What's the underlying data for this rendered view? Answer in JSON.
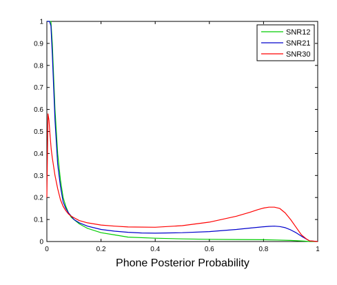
{
  "chart_data": {
    "type": "line",
    "xlabel": "Phone Posterior Probability",
    "ylabel": "",
    "xlim": [
      0,
      1
    ],
    "ylim": [
      0,
      1
    ],
    "xticks": [
      "0",
      "0.2",
      "0.4",
      "0.6",
      "0.8",
      "1"
    ],
    "yticks": [
      "0",
      "0.1",
      "0.2",
      "0.3",
      "0.4",
      "0.5",
      "0.6",
      "0.7",
      "0.8",
      "0.9",
      "1"
    ],
    "grid": false,
    "legend_position": "top-right",
    "series": [
      {
        "name": "SNR12",
        "color": "#00cc00",
        "x": [
          0.0,
          0.005,
          0.01,
          0.015,
          0.02,
          0.03,
          0.04,
          0.05,
          0.06,
          0.07,
          0.08,
          0.09,
          0.1,
          0.12,
          0.15,
          0.2,
          0.25,
          0.3,
          0.4,
          0.5,
          0.6,
          0.7,
          0.8,
          0.85,
          0.9,
          0.95,
          0.97,
          1.0
        ],
        "y": [
          1.0,
          1.0,
          1.0,
          1.0,
          0.9,
          0.6,
          0.4,
          0.28,
          0.2,
          0.16,
          0.13,
          0.11,
          0.1,
          0.08,
          0.06,
          0.04,
          0.03,
          0.02,
          0.015,
          0.012,
          0.01,
          0.009,
          0.008,
          0.007,
          0.005,
          0.002,
          0.0,
          0.0
        ]
      },
      {
        "name": "SNR21",
        "color": "#0000cc",
        "x": [
          0.0,
          0.005,
          0.01,
          0.015,
          0.02,
          0.03,
          0.04,
          0.05,
          0.06,
          0.07,
          0.08,
          0.09,
          0.1,
          0.12,
          0.15,
          0.2,
          0.25,
          0.3,
          0.35,
          0.4,
          0.5,
          0.6,
          0.7,
          0.75,
          0.8,
          0.82,
          0.84,
          0.86,
          0.88,
          0.9,
          0.92,
          0.94,
          0.96,
          0.97,
          1.0
        ],
        "y": [
          1.0,
          1.0,
          1.0,
          0.98,
          0.85,
          0.55,
          0.35,
          0.25,
          0.18,
          0.15,
          0.13,
          0.115,
          0.1,
          0.085,
          0.07,
          0.055,
          0.047,
          0.042,
          0.039,
          0.038,
          0.04,
          0.045,
          0.055,
          0.061,
          0.067,
          0.069,
          0.07,
          0.068,
          0.063,
          0.053,
          0.04,
          0.024,
          0.01,
          0.003,
          0.0
        ]
      },
      {
        "name": "SNR30",
        "color": "#ff0000",
        "x": [
          0.0,
          0.004,
          0.008,
          0.012,
          0.016,
          0.02,
          0.03,
          0.04,
          0.05,
          0.06,
          0.07,
          0.08,
          0.09,
          0.1,
          0.12,
          0.15,
          0.2,
          0.25,
          0.3,
          0.4,
          0.5,
          0.6,
          0.7,
          0.75,
          0.78,
          0.8,
          0.82,
          0.84,
          0.86,
          0.88,
          0.9,
          0.92,
          0.94,
          0.96,
          0.97,
          1.0
        ],
        "y": [
          0.2,
          0.58,
          0.55,
          0.48,
          0.42,
          0.38,
          0.3,
          0.24,
          0.19,
          0.16,
          0.14,
          0.125,
          0.115,
          0.108,
          0.095,
          0.085,
          0.075,
          0.07,
          0.066,
          0.065,
          0.072,
          0.088,
          0.115,
          0.133,
          0.145,
          0.152,
          0.156,
          0.156,
          0.15,
          0.13,
          0.1,
          0.065,
          0.03,
          0.01,
          0.003,
          0.0
        ]
      }
    ]
  }
}
